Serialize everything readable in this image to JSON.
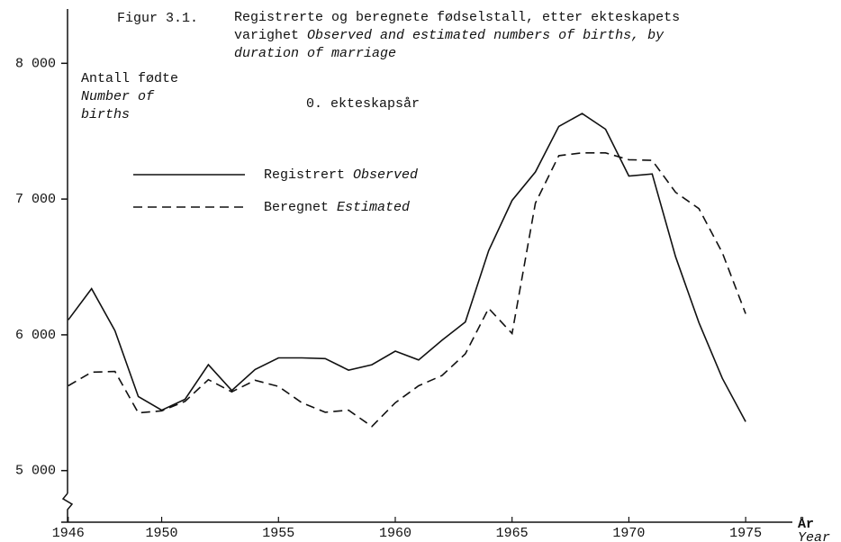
{
  "chart_data": {
    "type": "line",
    "title_number": "Figur 3.1.",
    "title": "Registrerte og beregnete fødselstall, etter ekteskapets varighet",
    "title_en": "Observed and estimated numbers of births, by duration of marriage",
    "subtitle": "0. ekteskapsår",
    "y_label": "Antall fødte",
    "y_label_en": "Number of births",
    "x_label": "År",
    "x_label_en": "Year",
    "x": [
      1946,
      1947,
      1948,
      1949,
      1950,
      1951,
      1952,
      1953,
      1954,
      1955,
      1956,
      1957,
      1958,
      1959,
      1960,
      1961,
      1962,
      1963,
      1964,
      1965,
      1966,
      1967,
      1968,
      1969,
      1970,
      1971,
      1972,
      1973,
      1974,
      1975
    ],
    "series": [
      {
        "name": "Registrert",
        "name_en": "Observed",
        "color": "#111111",
        "dash": false,
        "values": [
          6110,
          6340,
          6030,
          5545,
          5445,
          5525,
          5780,
          5590,
          5745,
          5830,
          5830,
          5825,
          5740,
          5780,
          5880,
          5815,
          5960,
          6095,
          6620,
          6990,
          7200,
          7535,
          7630,
          7515,
          7170,
          7185,
          6575,
          6090,
          5680,
          5360
        ]
      },
      {
        "name": "Beregnet",
        "name_en": "Estimated",
        "color": "#111111",
        "dash": true,
        "values": [
          5625,
          5725,
          5730,
          5425,
          5440,
          5510,
          5670,
          5580,
          5665,
          5620,
          5500,
          5430,
          5445,
          5325,
          5500,
          5625,
          5700,
          5860,
          6195,
          6010,
          6970,
          7320,
          7340,
          7340,
          7290,
          7285,
          7050,
          6930,
          6605,
          6155
        ]
      }
    ],
    "xlim": [
      1945.7,
      1977
    ],
    "xticks": [
      1946,
      1950,
      1955,
      1960,
      1965,
      1970,
      1975
    ],
    "ylim": [
      4620,
      8400
    ],
    "yticks": [
      {
        "value": 5000,
        "label": "5 000"
      },
      {
        "value": 6000,
        "label": "6 000"
      },
      {
        "value": 7000,
        "label": "7 000"
      },
      {
        "value": 8000,
        "label": "8 000"
      }
    ],
    "grid": false
  }
}
